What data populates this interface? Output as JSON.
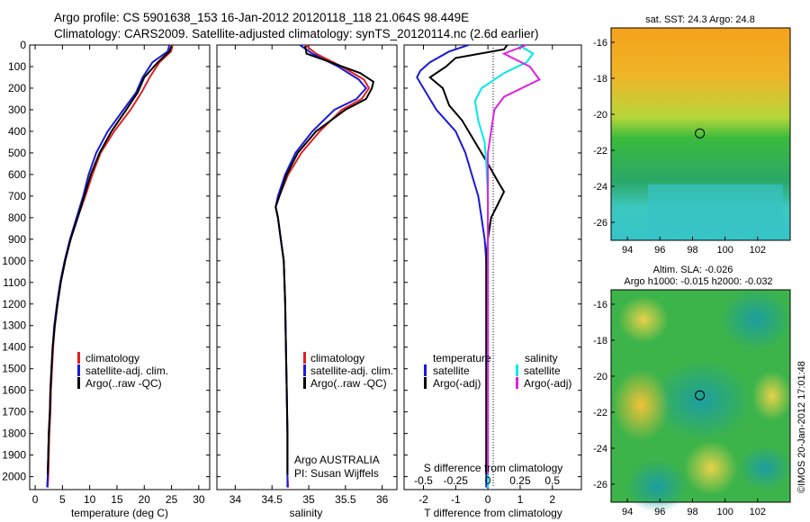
{
  "title": {
    "line1": "Argo profile: CS 5901638_153 16-Jan-2012 20120118_118 21.064S 98.449E",
    "line2": "Climatology: CARS2009. Satellite-adjusted climatology: synTS_20120114.nc (2.6d earlier)"
  },
  "credit": "©IMOS 20-Jan-2012 17:01:48",
  "colors": {
    "climatology": "#e02020",
    "satellite": "#1a1ad8",
    "argo": "#000000",
    "sal_satellite": "#00e8e8",
    "sal_argo": "#e020e0"
  },
  "chart_data": [
    {
      "type": "line",
      "id": "temperature",
      "xlabel": "temperature (deg C)",
      "xlim": [
        -1,
        32
      ],
      "xticks": [
        0,
        5,
        10,
        15,
        20,
        25,
        30
      ],
      "ylim": [
        2060,
        0
      ],
      "yticks": [
        0,
        100,
        200,
        300,
        400,
        500,
        600,
        700,
        800,
        900,
        1000,
        1100,
        1200,
        1300,
        1400,
        1500,
        1600,
        1700,
        1800,
        1900,
        2000
      ],
      "legend": [
        "climatology",
        "satellite-adj. clim.",
        "Argo(..raw -QC)"
      ],
      "series": [
        {
          "name": "climatology",
          "color_key": "climatology",
          "points": [
            [
              25.2,
              0
            ],
            [
              24.9,
              30
            ],
            [
              22.8,
              80
            ],
            [
              21,
              150
            ],
            [
              19.5,
              220
            ],
            [
              17.5,
              300
            ],
            [
              14.5,
              400
            ],
            [
              12,
              500
            ],
            [
              10.5,
              600
            ],
            [
              9.2,
              700
            ],
            [
              7.8,
              800
            ],
            [
              6.5,
              900
            ],
            [
              5.5,
              1000
            ],
            [
              4.7,
              1100
            ],
            [
              4.1,
              1200
            ],
            [
              3.6,
              1300
            ],
            [
              3.3,
              1400
            ],
            [
              3.1,
              1500
            ],
            [
              2.9,
              1600
            ],
            [
              2.8,
              1700
            ],
            [
              2.6,
              1800
            ],
            [
              2.5,
              1900
            ],
            [
              2.4,
              2000
            ],
            [
              2.3,
              2050
            ]
          ]
        },
        {
          "name": "satellite-adj. clim.",
          "color_key": "satellite",
          "points": [
            [
              24.6,
              0
            ],
            [
              24.3,
              30
            ],
            [
              21.5,
              80
            ],
            [
              19.7,
              150
            ],
            [
              18.5,
              220
            ],
            [
              16.2,
              300
            ],
            [
              13.3,
              400
            ],
            [
              11.2,
              500
            ],
            [
              9.8,
              600
            ],
            [
              8.8,
              700
            ],
            [
              7.6,
              800
            ],
            [
              6.4,
              900
            ],
            [
              5.4,
              1000
            ],
            [
              4.6,
              1100
            ],
            [
              4,
              1200
            ],
            [
              3.5,
              1300
            ],
            [
              3.2,
              1400
            ],
            [
              3,
              1500
            ],
            [
              2.8,
              1600
            ],
            [
              2.7,
              1700
            ],
            [
              2.5,
              1800
            ],
            [
              2.4,
              1900
            ],
            [
              2.3,
              2000
            ],
            [
              2.2,
              2050
            ]
          ]
        },
        {
          "name": "Argo(..raw -QC)",
          "color_key": "argo",
          "points": [
            [
              25,
              5
            ],
            [
              24.6,
              30
            ],
            [
              22.5,
              80
            ],
            [
              20,
              150
            ],
            [
              18.8,
              220
            ],
            [
              16.7,
              300
            ],
            [
              14,
              400
            ],
            [
              11.8,
              500
            ],
            [
              10.2,
              600
            ],
            [
              9,
              700
            ],
            [
              7.8,
              800
            ],
            [
              6.5,
              900
            ],
            [
              5.5,
              1000
            ],
            [
              4.7,
              1100
            ],
            [
              4.1,
              1200
            ],
            [
              3.6,
              1300
            ],
            [
              3.2,
              1400
            ],
            [
              3,
              1500
            ],
            [
              2.8,
              1600
            ],
            [
              2.7,
              1700
            ],
            [
              2.5,
              1800
            ],
            [
              2.4,
              1900
            ],
            [
              2.3,
              1990
            ]
          ]
        }
      ]
    },
    {
      "type": "line",
      "id": "salinity",
      "xlabel": "salinity",
      "xlim": [
        33.75,
        36.2
      ],
      "xticks": [
        34,
        34.5,
        35,
        35.5,
        36
      ],
      "xticklabels": [
        "34",
        "34.5",
        "35",
        "35.5",
        "36"
      ],
      "ylim": [
        2060,
        0
      ],
      "legend": [
        "climatology",
        "satellite-adj. clim.",
        "Argo(..raw -QC)"
      ],
      "annotation": [
        "Argo AUSTRALIA",
        "PI: Susan Wijffels"
      ],
      "series": [
        {
          "name": "climatology",
          "color_key": "climatology",
          "points": [
            [
              34.95,
              0
            ],
            [
              35.1,
              40
            ],
            [
              35.45,
              100
            ],
            [
              35.75,
              160
            ],
            [
              35.82,
              200
            ],
            [
              35.72,
              250
            ],
            [
              35.45,
              300
            ],
            [
              35.15,
              400
            ],
            [
              34.9,
              500
            ],
            [
              34.72,
              600
            ],
            [
              34.6,
              700
            ],
            [
              34.55,
              750
            ],
            [
              34.58,
              800
            ],
            [
              34.62,
              900
            ],
            [
              34.66,
              1000
            ],
            [
              34.68,
              1200
            ],
            [
              34.69,
              1400
            ],
            [
              34.7,
              1600
            ],
            [
              34.71,
              1800
            ],
            [
              34.71,
              2000
            ],
            [
              34.72,
              2050
            ]
          ]
        },
        {
          "name": "satellite-adj. clim.",
          "color_key": "satellite",
          "points": [
            [
              34.88,
              0
            ],
            [
              35.05,
              40
            ],
            [
              35.4,
              100
            ],
            [
              35.68,
              160
            ],
            [
              35.78,
              200
            ],
            [
              35.65,
              250
            ],
            [
              35.35,
              300
            ],
            [
              35.05,
              400
            ],
            [
              34.82,
              500
            ],
            [
              34.68,
              600
            ],
            [
              34.58,
              700
            ],
            [
              34.55,
              750
            ],
            [
              34.58,
              800
            ],
            [
              34.62,
              900
            ],
            [
              34.66,
              1000
            ],
            [
              34.68,
              1200
            ],
            [
              34.69,
              1400
            ],
            [
              34.7,
              1600
            ],
            [
              34.71,
              1800
            ],
            [
              34.71,
              2000
            ],
            [
              34.71,
              2050
            ]
          ]
        },
        {
          "name": "Argo(..raw -QC)",
          "color_key": "argo",
          "points": [
            [
              34.95,
              5
            ],
            [
              34.97,
              40
            ],
            [
              35.3,
              80
            ],
            [
              35.7,
              130
            ],
            [
              35.88,
              170
            ],
            [
              35.86,
              200
            ],
            [
              35.78,
              250
            ],
            [
              35.5,
              300
            ],
            [
              35.1,
              400
            ],
            [
              34.85,
              500
            ],
            [
              34.7,
              600
            ],
            [
              34.6,
              700
            ],
            [
              34.55,
              750
            ],
            [
              34.58,
              800
            ],
            [
              34.62,
              900
            ],
            [
              34.66,
              1000
            ],
            [
              34.68,
              1200
            ],
            [
              34.69,
              1400
            ],
            [
              34.7,
              1600
            ],
            [
              34.71,
              1800
            ],
            [
              34.71,
              1990
            ]
          ]
        }
      ]
    },
    {
      "type": "line",
      "id": "differences",
      "xlabel": "T difference from climatology",
      "xlabel_top": "S difference from climatology",
      "xlim": [
        -2.6,
        2.9
      ],
      "xticks": [
        -2,
        -1,
        0,
        1,
        2
      ],
      "s_xticks": [
        -0.5,
        -0.25,
        0,
        0.25,
        0.5
      ],
      "ylim": [
        2060,
        0
      ],
      "legend_left": [
        "temperature",
        "satellite",
        "Argo(-adj)"
      ],
      "legend_right": [
        "salinity",
        "satellite",
        "Argo(-adj)"
      ],
      "series": [
        {
          "name": "satellite",
          "color_key": "satellite",
          "points": [
            [
              -0.6,
              0
            ],
            [
              -1.2,
              30
            ],
            [
              -1.8,
              80
            ],
            [
              -2.1,
              120
            ],
            [
              -2.2,
              150
            ],
            [
              -2.0,
              200
            ],
            [
              -1.6,
              300
            ],
            [
              -1.0,
              400
            ],
            [
              -0.7,
              500
            ],
            [
              -0.5,
              600
            ],
            [
              -0.3,
              700
            ],
            [
              -0.2,
              800
            ],
            [
              -0.1,
              900
            ],
            [
              -0.05,
              1000
            ],
            [
              -0.05,
              1200
            ],
            [
              -0.05,
              1400
            ],
            [
              -0.05,
              1600
            ],
            [
              -0.05,
              1800
            ],
            [
              -0.05,
              2000
            ],
            [
              -0.05,
              2050
            ]
          ]
        },
        {
          "name": "Argo(-adj)",
          "color_key": "argo",
          "points": [
            [
              0.6,
              0
            ],
            [
              0.5,
              20
            ],
            [
              -1,
              60
            ],
            [
              -1.3,
              100
            ],
            [
              -1.8,
              150
            ],
            [
              -1.4,
              200
            ],
            [
              -1.2,
              280
            ],
            [
              -0.8,
              350
            ],
            [
              -0.4,
              450
            ],
            [
              0,
              550
            ],
            [
              0.3,
              630
            ],
            [
              0.5,
              680
            ],
            [
              0.3,
              740
            ],
            [
              0.1,
              800
            ],
            [
              0,
              900
            ],
            [
              -0.05,
              1000
            ],
            [
              -0.05,
              1200
            ],
            [
              -0.05,
              1400
            ],
            [
              -0.05,
              1600
            ],
            [
              -0.05,
              1800
            ],
            [
              -0.05,
              1990
            ]
          ]
        },
        {
          "name": "sal satellite",
          "color_key": "sal_satellite",
          "points": [
            [
              0.95,
              0
            ],
            [
              1.4,
              40
            ],
            [
              1.2,
              80
            ],
            [
              0.5,
              130
            ],
            [
              -0.2,
              200
            ],
            [
              -0.4,
              260
            ],
            [
              -0.3,
              350
            ],
            [
              -0.1,
              450
            ],
            [
              -0.05,
              550
            ],
            [
              0,
              700
            ],
            [
              0,
              900
            ],
            [
              0,
              1200
            ],
            [
              0,
              1500
            ],
            [
              0,
              1800
            ],
            [
              0,
              2050
            ]
          ]
        },
        {
          "name": "sal Argo(-adj)",
          "color_key": "sal_argo",
          "points": [
            [
              1.2,
              0
            ],
            [
              0.5,
              40
            ],
            [
              1.3,
              100
            ],
            [
              1.6,
              160
            ],
            [
              0.5,
              240
            ],
            [
              0.2,
              300
            ],
            [
              0.1,
              400
            ],
            [
              0,
              500
            ],
            [
              0,
              700
            ],
            [
              0,
              900
            ],
            [
              0,
              1200
            ],
            [
              0,
              1500
            ],
            [
              0,
              1800
            ],
            [
              0,
              1990
            ]
          ]
        }
      ]
    },
    {
      "type": "heatmap",
      "id": "sst_map",
      "title": "sat. SST: 24.3 Argo: 24.8",
      "xlim": [
        93,
        104
      ],
      "xticks": [
        94,
        96,
        98,
        100,
        102
      ],
      "ylim": [
        -27,
        -15.2
      ],
      "yticks": [
        -16,
        -18,
        -20,
        -22,
        -24,
        -26
      ],
      "marker": {
        "lon": 98.45,
        "lat": -21.06
      }
    },
    {
      "type": "heatmap",
      "id": "sla_map",
      "title": [
        "Altim. SLA: -0.026",
        "Argo h1000: -0.015 h2000: -0.032"
      ],
      "xlim": [
        93,
        104
      ],
      "xticks": [
        94,
        96,
        98,
        100,
        102
      ],
      "ylim": [
        -27,
        -15.2
      ],
      "yticks": [
        -16,
        -18,
        -20,
        -22,
        -24,
        -26
      ],
      "marker": {
        "lon": 98.45,
        "lat": -21.06
      }
    }
  ]
}
